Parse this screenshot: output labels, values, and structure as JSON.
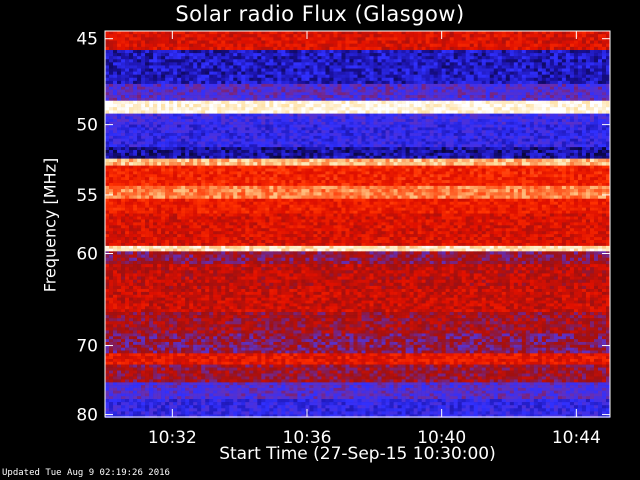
{
  "chart_data": {
    "type": "heatmap",
    "title": "Solar radio Flux (Glasgow)",
    "xlabel": "Start Time (27-Sep-15 10:30:00)",
    "ylabel": "Frequency [MHz]",
    "x_ticks": [
      "10:32",
      "10:36",
      "10:40",
      "10:44"
    ],
    "x_range": [
      "10:30:00",
      "10:45:00"
    ],
    "y_ticks": [
      45,
      50,
      55,
      60,
      70,
      80
    ],
    "y_range": [
      45,
      80
    ],
    "y_scale": "reciprocal",
    "colormap": [
      "#000000",
      "#1a10a0",
      "#3030ff",
      "#6030c0",
      "#a01010",
      "#e01000",
      "#ff3000",
      "#ff8040",
      "#ffe0a0",
      "#ffffff"
    ],
    "bands": [
      {
        "f0": 44.6,
        "f1": 45.6,
        "level": 0.55
      },
      {
        "f0": 45.6,
        "f1": 47.5,
        "level": 0.15
      },
      {
        "f0": 47.5,
        "f1": 48.5,
        "level": 0.3
      },
      {
        "f0": 48.5,
        "f1": 49.3,
        "level": 0.97
      },
      {
        "f0": 49.3,
        "f1": 50.0,
        "level": 0.25
      },
      {
        "f0": 50.0,
        "f1": 51.5,
        "level": 0.22
      },
      {
        "f0": 51.5,
        "f1": 52.3,
        "level": 0.12
      },
      {
        "f0": 52.3,
        "f1": 52.8,
        "level": 0.85
      },
      {
        "f0": 52.8,
        "f1": 54.3,
        "level": 0.62
      },
      {
        "f0": 54.3,
        "f1": 55.3,
        "level": 0.78
      },
      {
        "f0": 55.3,
        "f1": 56.5,
        "level": 0.6
      },
      {
        "f0": 56.5,
        "f1": 59.3,
        "level": 0.55
      },
      {
        "f0": 59.3,
        "f1": 59.8,
        "level": 0.92
      },
      {
        "f0": 59.8,
        "f1": 61.0,
        "level": 0.42
      },
      {
        "f0": 61.0,
        "f1": 63.5,
        "level": 0.5
      },
      {
        "f0": 63.5,
        "f1": 66.0,
        "level": 0.52
      },
      {
        "f0": 66.0,
        "f1": 68.5,
        "level": 0.45
      },
      {
        "f0": 68.5,
        "f1": 71.0,
        "level": 0.4
      },
      {
        "f0": 71.0,
        "f1": 72.5,
        "level": 0.58
      },
      {
        "f0": 72.5,
        "f1": 75.0,
        "level": 0.44
      },
      {
        "f0": 75.0,
        "f1": 77.5,
        "level": 0.3
      },
      {
        "f0": 77.5,
        "f1": 80.5,
        "level": 0.22
      }
    ]
  },
  "footer": "Updated Tue Aug  9 02:19:26 2016"
}
